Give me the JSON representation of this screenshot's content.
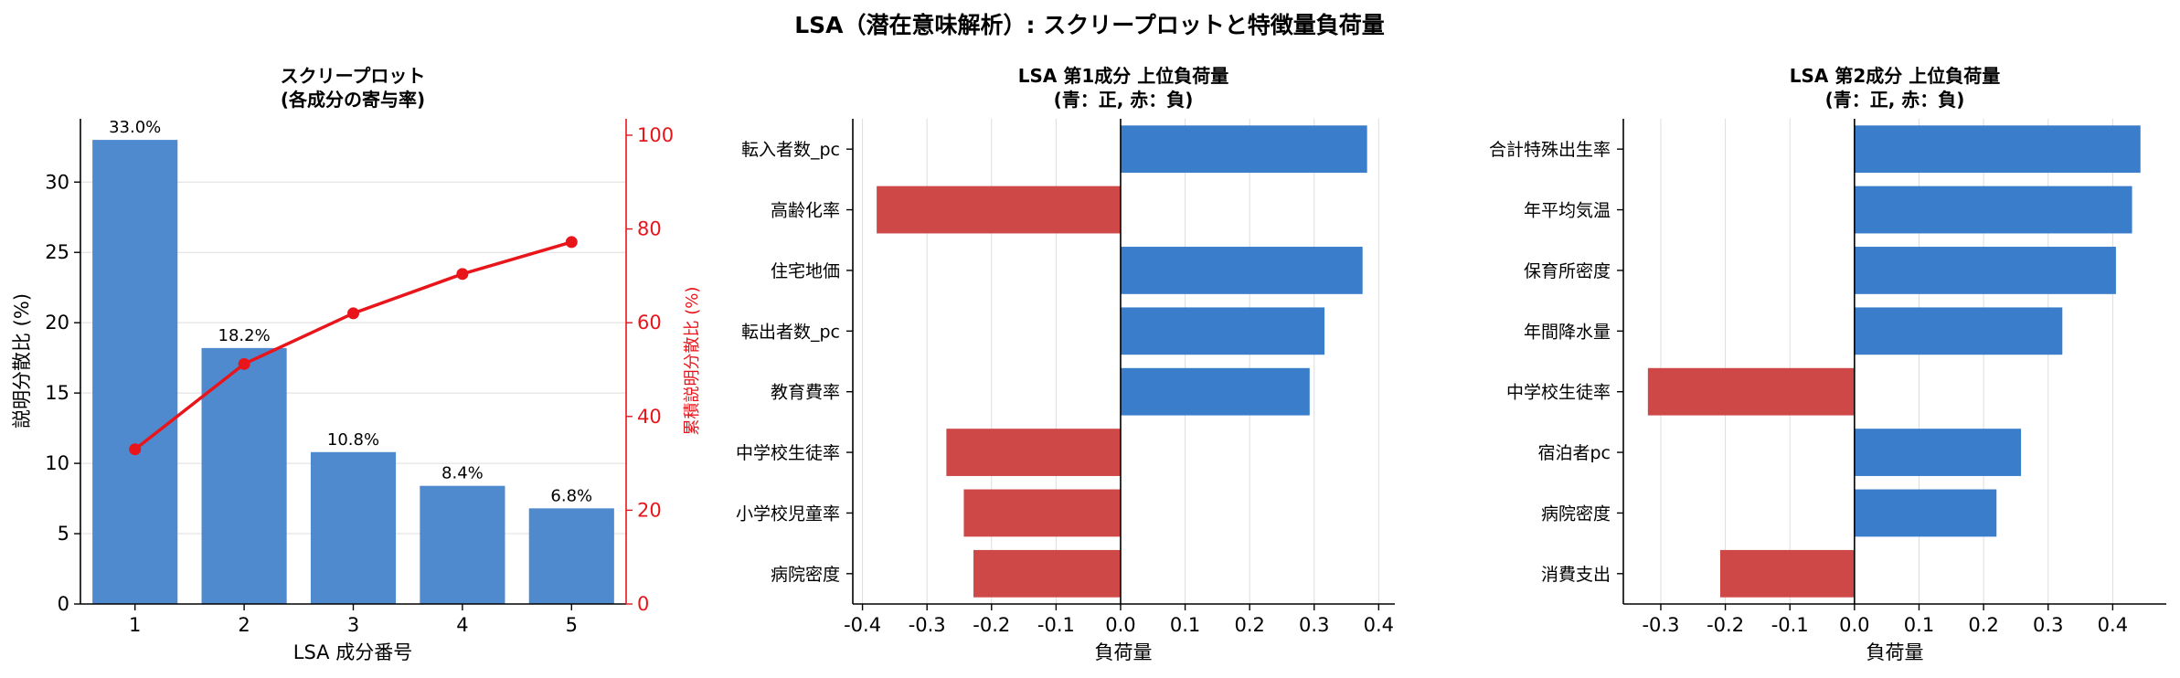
{
  "figure_title": "LSA（潜在意味解析）: スクリープロットと特徴量負荷量",
  "colors": {
    "bar": "#4f8acf",
    "pos": "#3a7dcb",
    "neg": "#cf4848",
    "line": "#e8151b",
    "axis": "#000000",
    "grid": "#dddddd"
  },
  "chart_data": [
    {
      "type": "bar",
      "title_lines": [
        "スクリープロット",
        "(各成分の寄与率)"
      ],
      "xlabel": "LSA 成分番号",
      "ylabel": "説明分散比 (%)",
      "ylabel_right": "累積説明分散比 (%)",
      "categories": [
        "1",
        "2",
        "3",
        "4",
        "5"
      ],
      "values": [
        33.0,
        18.2,
        10.8,
        8.4,
        6.8
      ],
      "value_labels": [
        "33.0%",
        "18.2%",
        "10.8%",
        "8.4%",
        "6.8%"
      ],
      "ylim": [
        0,
        34.5
      ],
      "yticks": [
        0,
        5,
        10,
        15,
        20,
        25,
        30
      ],
      "ylim_right": [
        0,
        103.5
      ],
      "yticks_right": [
        0,
        20,
        40,
        60,
        80,
        100
      ],
      "cumulative": [
        33.0,
        51.2,
        62.0,
        70.4,
        77.2
      ],
      "grid": "horizontal"
    },
    {
      "type": "bar",
      "orientation": "horizontal",
      "title_lines": [
        "LSA 第1成分 上位負荷量",
        "(青：正, 赤：負)"
      ],
      "xlabel": "負荷量",
      "categories": [
        "転入者数_pc",
        "高齢化率",
        "住宅地価",
        "転出者数_pc",
        "教育費率",
        "中学校生徒率",
        "小学校児童率",
        "病院密度"
      ],
      "values": [
        0.382,
        -0.378,
        0.375,
        0.316,
        0.293,
        -0.27,
        -0.243,
        -0.228
      ],
      "xlim": [
        -0.415,
        0.425
      ],
      "xticks": [
        -0.4,
        -0.3,
        -0.2,
        -0.1,
        0.0,
        0.1,
        0.2,
        0.3,
        0.4
      ],
      "xtick_labels": [
        "-0.4",
        "-0.3",
        "-0.2",
        "-0.1",
        "0.0",
        "0.1",
        "0.2",
        "0.3",
        "0.4"
      ],
      "grid": "vertical"
    },
    {
      "type": "bar",
      "orientation": "horizontal",
      "title_lines": [
        "LSA 第2成分 上位負荷量",
        "(青：正, 赤：負)"
      ],
      "xlabel": "負荷量",
      "categories": [
        "合計特殊出生率",
        "年平均気温",
        "保育所密度",
        "年間降水量",
        "中学校生徒率",
        "宿泊者pc",
        "病院密度",
        "消費支出"
      ],
      "values": [
        0.443,
        0.43,
        0.405,
        0.322,
        -0.32,
        0.258,
        0.22,
        -0.208
      ],
      "xlim": [
        -0.358,
        0.483
      ],
      "xticks": [
        -0.3,
        -0.2,
        -0.1,
        0.0,
        0.1,
        0.2,
        0.3,
        0.4
      ],
      "xtick_labels": [
        "-0.3",
        "-0.2",
        "-0.1",
        "0.0",
        "0.1",
        "0.2",
        "0.3",
        "0.4"
      ],
      "grid": "vertical"
    }
  ]
}
